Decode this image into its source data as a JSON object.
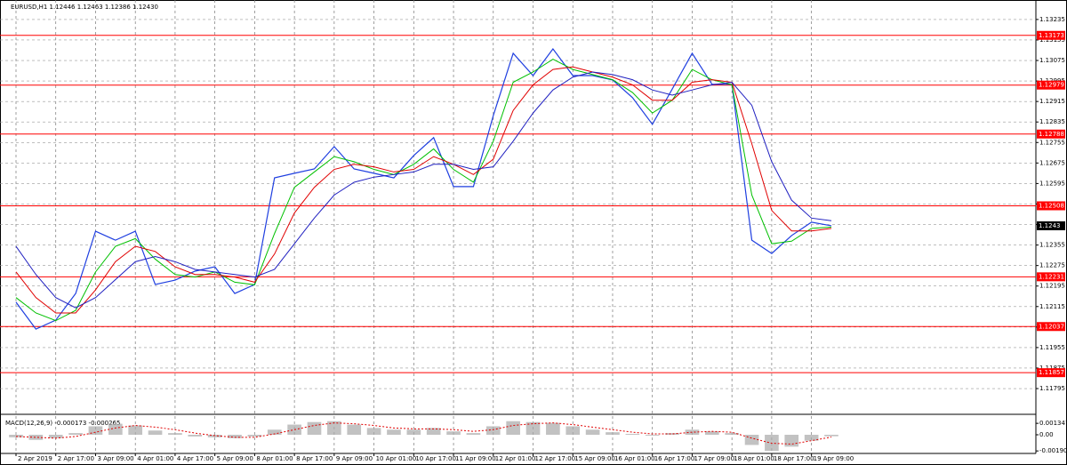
{
  "chart_data": [
    {
      "type": "line",
      "title": "EURUSD,H1  1.12446 1.12463 1.12386 1.12430",
      "categories": [
        "2 Apr 2019",
        null,
        "2 Apr 17:00",
        null,
        "3 Apr 09:00",
        null,
        "4 Apr 01:00",
        null,
        "4 Apr 17:00",
        null,
        "5 Apr 09:00",
        null,
        "8 Apr 01:00",
        null,
        "8 Apr 17:00",
        null,
        "9 Apr 09:00",
        null,
        "10 Apr 01:00",
        null,
        "10 Apr 17:00",
        null,
        "11 Apr 09:00",
        null,
        "12 Apr 01:00",
        null,
        "12 Apr 17:00",
        null,
        "15 Apr 09:00",
        null,
        "16 Apr 01:00",
        null,
        "16 Apr 17:00",
        null,
        "17 Apr 09:00",
        null,
        "18 Apr 01:00",
        null,
        "18 Apr 17:00",
        null,
        "19 Apr 09:00",
        null
      ],
      "series": [
        {
          "color": "#1f3fe0",
          "values": [
            1.12132,
            1.12027,
            1.12062,
            1.12166,
            1.12409,
            1.12374,
            1.12409,
            1.12201,
            1.12218,
            1.12253,
            1.1227,
            1.12166,
            1.12201,
            1.12617,
            1.12635,
            1.12652,
            1.12739,
            1.12652,
            1.12635,
            1.12617,
            1.12704,
            1.12774,
            1.12583,
            1.12583,
            1.1286,
            1.13103,
            1.13016,
            1.1312,
            1.13016,
            1.13016,
            1.12999,
            1.1293,
            1.12826,
            1.12964,
            1.13103,
            1.12982,
            1.12982,
            1.12374,
            1.12322,
            1.12392,
            1.12444,
            1.1243
          ]
        },
        {
          "color": "#00c000",
          "values": [
            1.1215,
            1.1209,
            1.1206,
            1.121,
            1.1225,
            1.1235,
            1.1238,
            1.123,
            1.1224,
            1.1223,
            1.1225,
            1.1221,
            1.122,
            1.124,
            1.1258,
            1.1264,
            1.127,
            1.1268,
            1.1265,
            1.1263,
            1.1267,
            1.1273,
            1.1265,
            1.126,
            1.1276,
            1.1299,
            1.1303,
            1.1308,
            1.1304,
            1.1302,
            1.13,
            1.1295,
            1.1287,
            1.1292,
            1.1304,
            1.13,
            1.1298,
            1.1255,
            1.1236,
            1.1237,
            1.1242,
            1.12425
          ]
        },
        {
          "color": "#e00000",
          "values": [
            1.1225,
            1.1215,
            1.1209,
            1.1209,
            1.1218,
            1.1229,
            1.1235,
            1.1233,
            1.1227,
            1.1224,
            1.1224,
            1.1223,
            1.1221,
            1.1232,
            1.1248,
            1.1258,
            1.1265,
            1.1267,
            1.1266,
            1.1264,
            1.1265,
            1.127,
            1.1267,
            1.1263,
            1.1269,
            1.1288,
            1.1298,
            1.1304,
            1.1305,
            1.1303,
            1.1301,
            1.1298,
            1.1292,
            1.1292,
            1.1299,
            1.13,
            1.1299,
            1.1275,
            1.1249,
            1.1241,
            1.1241,
            1.1242
          ]
        },
        {
          "color": "#2020c0",
          "values": [
            1.1235,
            1.1224,
            1.1215,
            1.1211,
            1.1215,
            1.1222,
            1.1229,
            1.1231,
            1.1229,
            1.1226,
            1.1225,
            1.1224,
            1.1223,
            1.1226,
            1.1236,
            1.1246,
            1.1255,
            1.126,
            1.1262,
            1.1263,
            1.1264,
            1.1267,
            1.1267,
            1.1265,
            1.1266,
            1.1276,
            1.1287,
            1.1296,
            1.1301,
            1.1303,
            1.1302,
            1.13,
            1.1296,
            1.1294,
            1.1296,
            1.1298,
            1.1299,
            1.129,
            1.1268,
            1.1253,
            1.1246,
            1.1245
          ]
        }
      ],
      "levels": [
        1.13173,
        1.12979,
        1.12788,
        1.12508,
        1.12231,
        1.12037,
        1.11857
      ],
      "level_color": "#ff0000",
      "last_price": 1.1243,
      "ylim": [
        1.11698,
        1.13304
      ],
      "yticks": [
        1.13235,
        1.13155,
        1.13075,
        1.12995,
        1.12915,
        1.12835,
        1.12755,
        1.12675,
        1.12595,
        1.12515,
        1.12435,
        1.12355,
        1.12275,
        1.12195,
        1.12115,
        1.12035,
        1.11955,
        1.11875,
        1.11795
      ],
      "grid": true
    },
    {
      "type": "bar",
      "title": "MACD(12,26,9) -0.000173 -0.000265",
      "color": "#a8a8a8",
      "values": [
        -0.0003,
        -0.0006,
        -0.0004,
        0.0002,
        0.001,
        0.0013,
        0.0011,
        0.0005,
        0.0002,
        -0.0002,
        -0.0003,
        -0.0004,
        -0.0002,
        0.0006,
        0.0012,
        0.0015,
        0.0016,
        0.0012,
        0.0008,
        0.0006,
        0.0006,
        0.0008,
        0.0004,
        0.0002,
        0.001,
        0.0016,
        0.0015,
        0.0014,
        0.001,
        0.0006,
        0.0003,
        0.0001,
        -0.0001,
        0.0002,
        0.0006,
        0.0004,
        0.0002,
        -0.0012,
        -0.0019,
        -0.0014,
        -0.0007,
        -0.000173
      ],
      "signal": {
        "color": "#e00000",
        "values": [
          -0.0002,
          -0.0003,
          -0.0004,
          -0.0002,
          0.0003,
          0.0008,
          0.0011,
          0.0009,
          0.0006,
          0.0002,
          -0.0001,
          -0.0003,
          -0.0003,
          0.0001,
          0.0006,
          0.0011,
          0.0014,
          0.0013,
          0.0011,
          0.0008,
          0.0007,
          0.0007,
          0.0006,
          0.0004,
          0.0006,
          0.0011,
          0.0013,
          0.0014,
          0.0012,
          0.0009,
          0.0006,
          0.0003,
          0.0001,
          0.0001,
          0.0003,
          0.0004,
          0.0003,
          -0.0004,
          -0.001,
          -0.0011,
          -0.0007,
          -0.000265
        ]
      },
      "ylim": [
        -0.0022,
        0.0022
      ],
      "yticks": [
        0.001347,
        {
          "value": 0,
          "label": "0.00"
        },
        -0.001904
      ]
    }
  ]
}
